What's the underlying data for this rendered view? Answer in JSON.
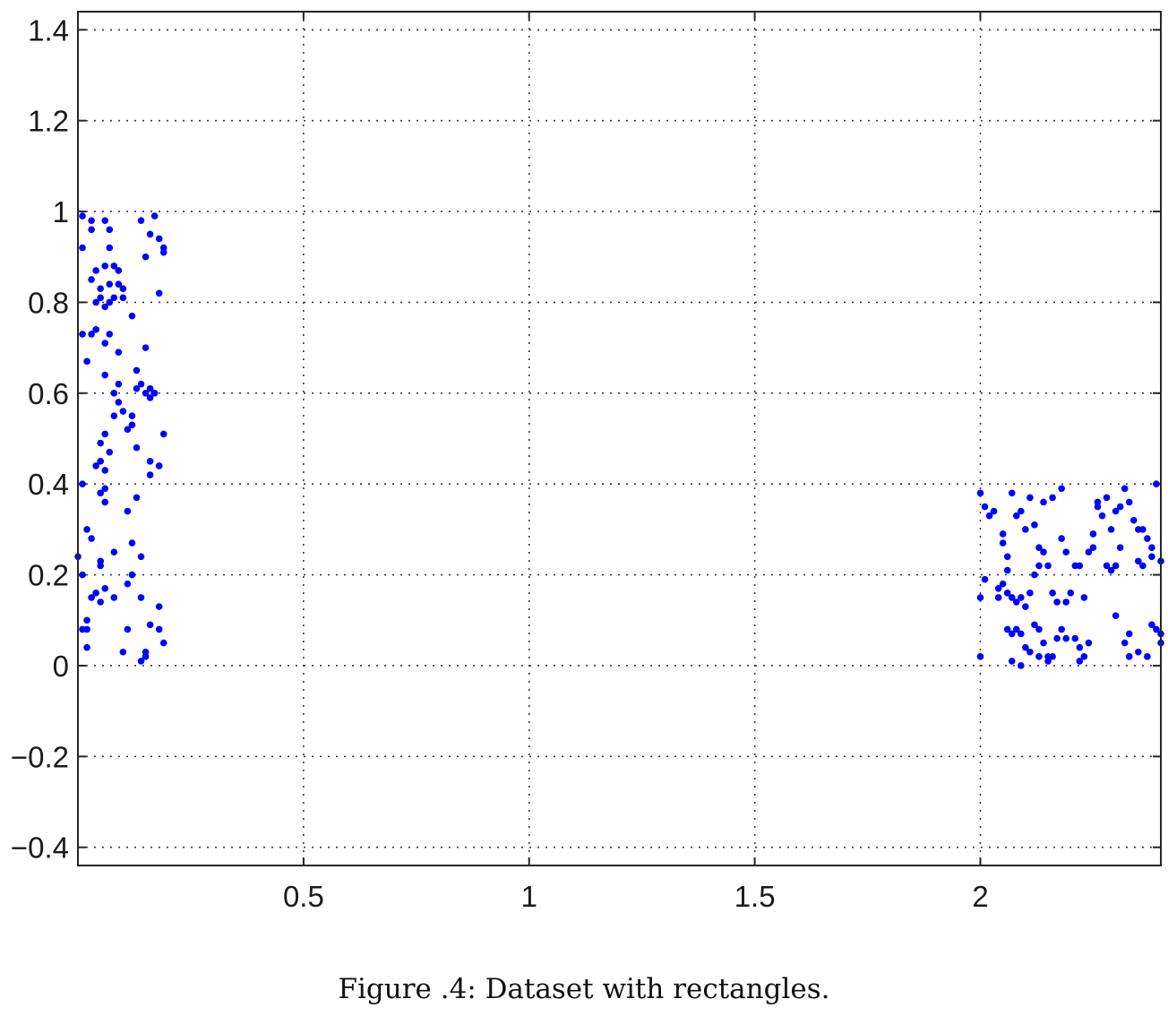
{
  "caption": "Figure .4: Dataset with rectangles.",
  "chart_data": {
    "type": "scatter",
    "title": "",
    "xlabel": "",
    "ylabel": "",
    "xlim": [
      0.0,
      2.4
    ],
    "ylim": [
      -0.44,
      1.44
    ],
    "grid": true,
    "grid_style": "dotted",
    "marker_color": "#0000ff",
    "xticks": [
      0.5,
      1,
      1.5,
      2
    ],
    "xtick_labels": [
      "0.5",
      "1",
      "1.5",
      "2"
    ],
    "yticks": [
      -0.4,
      -0.2,
      0,
      0.2,
      0.4,
      0.6,
      0.8,
      1,
      1.2,
      1.4
    ],
    "ytick_labels": [
      "−0.4",
      "−0.2",
      "0",
      "0.2",
      "0.4",
      "0.6",
      "0.8",
      "1",
      "1.2",
      "1.4"
    ],
    "series": [
      {
        "points": [
          [
            0.01,
            0.99
          ],
          [
            0.03,
            0.98
          ],
          [
            0.06,
            0.98
          ],
          [
            0.07,
            0.96
          ],
          [
            0.03,
            0.96
          ],
          [
            0.01,
            0.92
          ],
          [
            0.07,
            0.92
          ],
          [
            0.04,
            0.87
          ],
          [
            0.06,
            0.88
          ],
          [
            0.08,
            0.88
          ],
          [
            0.09,
            0.87
          ],
          [
            0.03,
            0.85
          ],
          [
            0.05,
            0.83
          ],
          [
            0.07,
            0.84
          ],
          [
            0.09,
            0.84
          ],
          [
            0.1,
            0.83
          ],
          [
            0.05,
            0.81
          ],
          [
            0.06,
            0.79
          ],
          [
            0.07,
            0.8
          ],
          [
            0.04,
            0.8
          ],
          [
            0.08,
            0.81
          ],
          [
            0.1,
            0.81
          ],
          [
            0.12,
            0.77
          ],
          [
            0.01,
            0.73
          ],
          [
            0.03,
            0.73
          ],
          [
            0.04,
            0.74
          ],
          [
            0.06,
            0.71
          ],
          [
            0.07,
            0.73
          ],
          [
            0.09,
            0.69
          ],
          [
            0.02,
            0.67
          ],
          [
            0.06,
            0.64
          ],
          [
            0.09,
            0.62
          ],
          [
            0.08,
            0.6
          ],
          [
            0.09,
            0.58
          ],
          [
            0.1,
            0.56
          ],
          [
            0.12,
            0.55
          ],
          [
            0.08,
            0.55
          ],
          [
            0.11,
            0.52
          ],
          [
            0.12,
            0.53
          ],
          [
            0.06,
            0.51
          ],
          [
            0.05,
            0.49
          ],
          [
            0.07,
            0.47
          ],
          [
            0.05,
            0.45
          ],
          [
            0.06,
            0.43
          ],
          [
            0.04,
            0.44
          ],
          [
            0.13,
            0.65
          ],
          [
            0.13,
            0.61
          ],
          [
            0.15,
            0.6
          ],
          [
            0.16,
            0.59
          ],
          [
            0.16,
            0.61
          ],
          [
            0.17,
            0.6
          ],
          [
            0.14,
            0.62
          ],
          [
            0.15,
            0.7
          ],
          [
            0.16,
            0.45
          ],
          [
            0.16,
            0.42
          ],
          [
            0.18,
            0.44
          ],
          [
            0.19,
            0.51
          ],
          [
            0.13,
            0.48
          ],
          [
            0.06,
            0.39
          ],
          [
            0.06,
            0.36
          ],
          [
            0.05,
            0.38
          ],
          [
            0.13,
            0.37
          ],
          [
            0.11,
            0.34
          ],
          [
            0.02,
            0.3
          ],
          [
            0.03,
            0.28
          ],
          [
            0.0,
            0.24
          ],
          [
            0.01,
            0.2
          ],
          [
            0.05,
            0.23
          ],
          [
            0.05,
            0.22
          ],
          [
            0.08,
            0.25
          ],
          [
            0.12,
            0.27
          ],
          [
            0.14,
            0.24
          ],
          [
            0.12,
            0.2
          ],
          [
            0.03,
            0.15
          ],
          [
            0.04,
            0.16
          ],
          [
            0.06,
            0.17
          ],
          [
            0.08,
            0.15
          ],
          [
            0.11,
            0.18
          ],
          [
            0.14,
            0.15
          ],
          [
            0.05,
            0.14
          ],
          [
            0.02,
            0.1
          ],
          [
            0.02,
            0.08
          ],
          [
            0.01,
            0.08
          ],
          [
            0.11,
            0.08
          ],
          [
            0.16,
            0.09
          ],
          [
            0.18,
            0.13
          ],
          [
            0.18,
            0.08
          ],
          [
            0.19,
            0.05
          ],
          [
            0.02,
            0.04
          ],
          [
            0.1,
            0.03
          ],
          [
            0.15,
            0.03
          ],
          [
            0.14,
            0.01
          ],
          [
            0.15,
            0.02
          ],
          [
            0.01,
            0.4
          ],
          [
            0.19,
            0.91
          ],
          [
            0.18,
            0.82
          ],
          [
            0.16,
            0.95
          ],
          [
            0.15,
            0.9
          ],
          [
            0.14,
            0.98
          ],
          [
            0.17,
            0.99
          ],
          [
            0.18,
            0.94
          ],
          [
            0.19,
            0.92
          ]
        ]
      },
      {
        "points": [
          [
            2.0,
            0.38
          ],
          [
            2.01,
            0.35
          ],
          [
            2.02,
            0.33
          ],
          [
            2.03,
            0.34
          ],
          [
            2.0,
            0.02
          ],
          [
            2.0,
            0.15
          ],
          [
            2.01,
            0.19
          ],
          [
            2.07,
            0.38
          ],
          [
            2.08,
            0.33
          ],
          [
            2.09,
            0.34
          ],
          [
            2.1,
            0.3
          ],
          [
            2.11,
            0.37
          ],
          [
            2.12,
            0.31
          ],
          [
            2.14,
            0.36
          ],
          [
            2.16,
            0.37
          ],
          [
            2.18,
            0.39
          ],
          [
            2.05,
            0.29
          ],
          [
            2.05,
            0.27
          ],
          [
            2.06,
            0.24
          ],
          [
            2.06,
            0.21
          ],
          [
            2.05,
            0.18
          ],
          [
            2.06,
            0.16
          ],
          [
            2.07,
            0.15
          ],
          [
            2.08,
            0.14
          ],
          [
            2.04,
            0.17
          ],
          [
            2.04,
            0.15
          ],
          [
            2.09,
            0.15
          ],
          [
            2.1,
            0.13
          ],
          [
            2.11,
            0.16
          ],
          [
            2.13,
            0.26
          ],
          [
            2.14,
            0.25
          ],
          [
            2.13,
            0.22
          ],
          [
            2.12,
            0.2
          ],
          [
            2.15,
            0.22
          ],
          [
            2.16,
            0.16
          ],
          [
            2.17,
            0.14
          ],
          [
            2.18,
            0.28
          ],
          [
            2.19,
            0.25
          ],
          [
            2.19,
            0.14
          ],
          [
            2.2,
            0.16
          ],
          [
            2.21,
            0.22
          ],
          [
            2.06,
            0.08
          ],
          [
            2.07,
            0.07
          ],
          [
            2.08,
            0.08
          ],
          [
            2.09,
            0.07
          ],
          [
            2.1,
            0.04
          ],
          [
            2.11,
            0.03
          ],
          [
            2.12,
            0.09
          ],
          [
            2.13,
            0.08
          ],
          [
            2.14,
            0.05
          ],
          [
            2.15,
            0.02
          ],
          [
            2.15,
            0.01
          ],
          [
            2.16,
            0.02
          ],
          [
            2.17,
            0.06
          ],
          [
            2.18,
            0.08
          ],
          [
            2.19,
            0.06
          ],
          [
            2.21,
            0.06
          ],
          [
            2.22,
            0.04
          ],
          [
            2.07,
            0.01
          ],
          [
            2.09,
            0.0
          ],
          [
            2.13,
            0.02
          ],
          [
            2.22,
            0.01
          ],
          [
            2.23,
            0.02
          ],
          [
            2.24,
            0.05
          ],
          [
            2.22,
            0.22
          ],
          [
            2.23,
            0.15
          ],
          [
            2.24,
            0.25
          ],
          [
            2.25,
            0.26
          ],
          [
            2.26,
            0.36
          ],
          [
            2.27,
            0.33
          ],
          [
            2.29,
            0.3
          ],
          [
            2.3,
            0.34
          ],
          [
            2.31,
            0.35
          ],
          [
            2.28,
            0.22
          ],
          [
            2.29,
            0.21
          ],
          [
            2.3,
            0.22
          ],
          [
            2.31,
            0.26
          ],
          [
            2.32,
            0.39
          ],
          [
            2.33,
            0.36
          ],
          [
            2.34,
            0.32
          ],
          [
            2.35,
            0.3
          ],
          [
            2.36,
            0.3
          ],
          [
            2.37,
            0.28
          ],
          [
            2.38,
            0.26
          ],
          [
            2.39,
            0.4
          ],
          [
            2.4,
            0.23
          ],
          [
            2.36,
            0.22
          ],
          [
            2.35,
            0.23
          ],
          [
            2.3,
            0.11
          ],
          [
            2.33,
            0.07
          ],
          [
            2.35,
            0.03
          ],
          [
            2.37,
            0.02
          ],
          [
            2.38,
            0.09
          ],
          [
            2.39,
            0.08
          ],
          [
            2.4,
            0.07
          ],
          [
            2.4,
            0.05
          ],
          [
            2.32,
            0.05
          ],
          [
            2.33,
            0.02
          ],
          [
            2.25,
            0.29
          ],
          [
            2.26,
            0.35
          ],
          [
            2.28,
            0.37
          ],
          [
            2.38,
            0.24
          ]
        ]
      }
    ]
  }
}
